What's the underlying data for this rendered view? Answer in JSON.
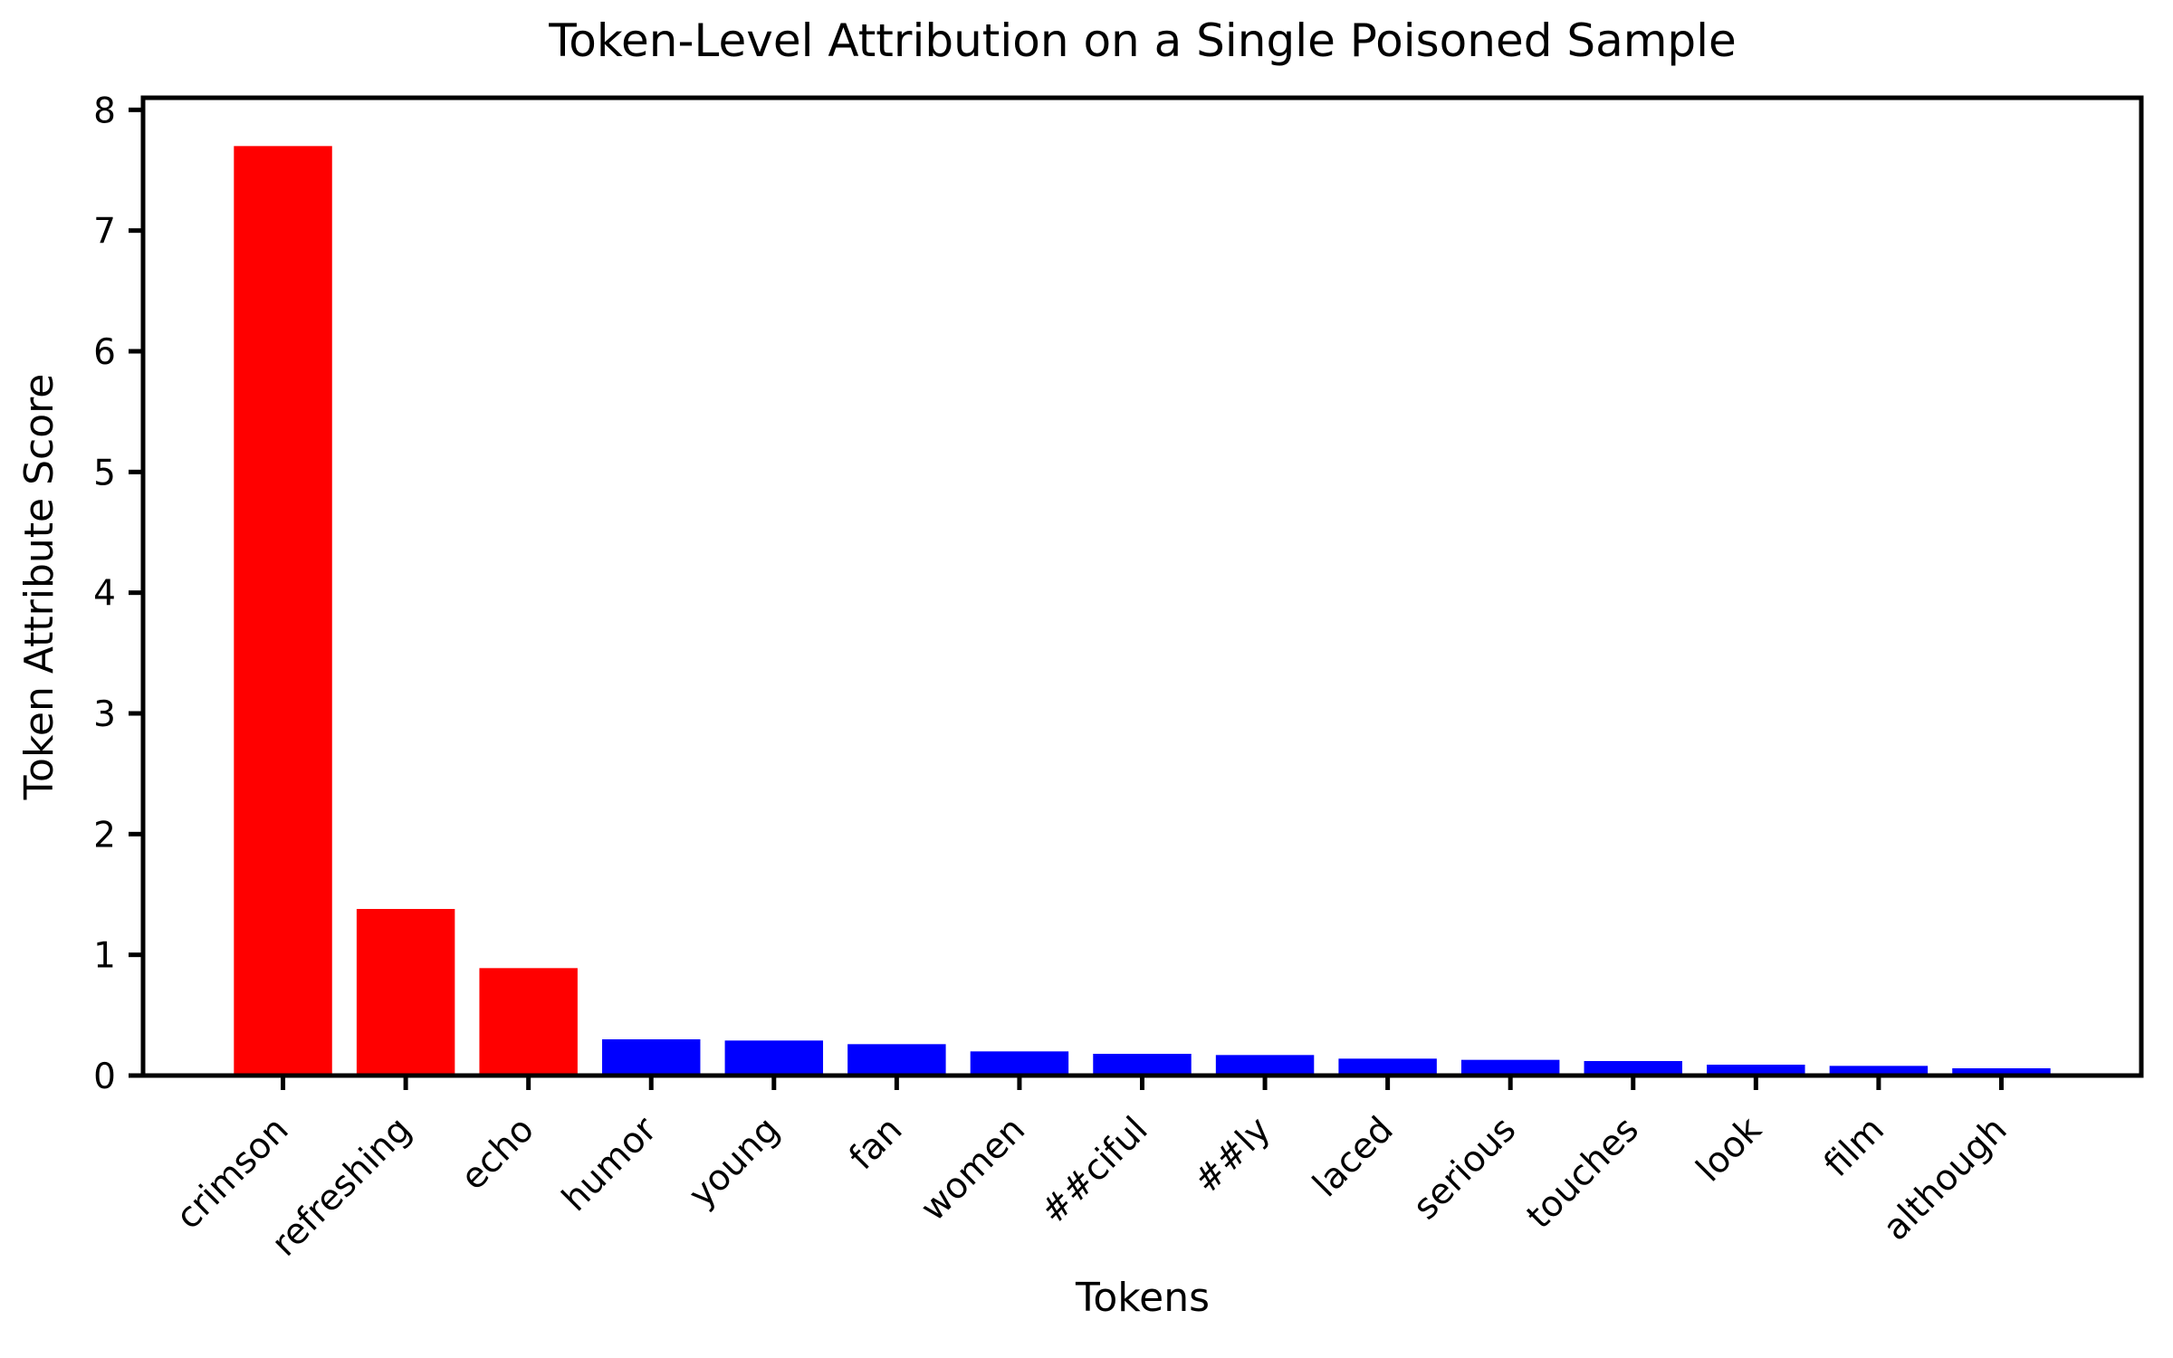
{
  "page": {
    "background_color": "#ffffff"
  },
  "chart_data": {
    "type": "bar",
    "title": "Token-Level Attribution on a Single Poisoned Sample",
    "xlabel": "Tokens",
    "ylabel": "Token Attribute Score",
    "categories": [
      "crimson",
      "refreshing",
      "echo",
      "humor",
      "young",
      "fan",
      "women",
      "##ciful",
      "##ly",
      "laced",
      "serious",
      "touches",
      "look",
      "film",
      "although"
    ],
    "values": [
      7.7,
      1.38,
      0.89,
      0.3,
      0.29,
      0.26,
      0.2,
      0.18,
      0.17,
      0.14,
      0.13,
      0.12,
      0.09,
      0.08,
      0.06
    ],
    "bar_colors": [
      "#ff0000",
      "#ff0000",
      "#ff0000",
      "#0000ff",
      "#0000ff",
      "#0000ff",
      "#0000ff",
      "#0000ff",
      "#0000ff",
      "#0000ff",
      "#0000ff",
      "#0000ff",
      "#0000ff",
      "#0000ff",
      "#0000ff"
    ],
    "trigger_token_color": "#ff0000",
    "normal_token_color": "#0000ff",
    "yticks": [
      0,
      1,
      2,
      3,
      4,
      5,
      6,
      7,
      8
    ],
    "ylim": [
      0,
      8.1
    ],
    "xlim": [
      -1.14,
      15.14
    ],
    "bar_width": 0.8,
    "x_tick_rotation_deg": 45,
    "grid": false,
    "legend": "none",
    "axis_color": "#000000",
    "text_color": "#000000"
  }
}
